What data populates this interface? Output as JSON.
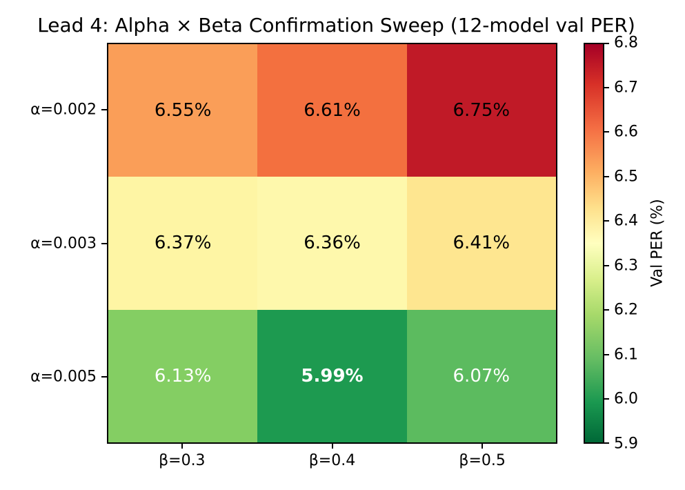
{
  "title": "Lead 4: Alpha × Beta Confirmation Sweep (12-model val PER)",
  "chart_data": {
    "type": "heatmap",
    "title": "Lead 4: Alpha × Beta Confirmation Sweep (12-model val PER)",
    "row_labels": [
      "α=0.002",
      "α=0.003",
      "α=0.005"
    ],
    "col_labels": [
      "β=0.3",
      "β=0.4",
      "β=0.5"
    ],
    "values": [
      [
        6.55,
        6.61,
        6.75
      ],
      [
        6.37,
        6.36,
        6.41
      ],
      [
        6.13,
        5.99,
        6.07
      ]
    ],
    "cell_labels": [
      [
        "6.55%",
        "6.61%",
        "6.75%"
      ],
      [
        "6.37%",
        "6.36%",
        "6.41%"
      ],
      [
        "6.13%",
        "5.99%",
        "6.07%"
      ]
    ],
    "cell_colors": [
      [
        "#fa9e58",
        "#f3703f",
        "#c01a27"
      ],
      [
        "#fef5a4",
        "#fef8ac",
        "#fee690"
      ],
      [
        "#84ce63",
        "#1d9a50",
        "#5cbb5f"
      ]
    ],
    "cell_text_colors": [
      [
        "#000000",
        "#000000",
        "#000000"
      ],
      [
        "#000000",
        "#000000",
        "#000000"
      ],
      [
        "#ffffff",
        "#ffffff",
        "#ffffff"
      ]
    ],
    "bold_cell": {
      "row": 2,
      "col": 1
    },
    "grid": false,
    "colormap": "RdYlGn_r",
    "colorbar": {
      "label": "Val PER (%)",
      "vmin": 5.9,
      "vmax": 6.8,
      "tick_labels_top_to_bottom": [
        "6.8",
        "6.7",
        "6.6",
        "6.5",
        "6.4",
        "6.3",
        "6.2",
        "6.1",
        "6.0",
        "5.9"
      ],
      "gradient_top_to_bottom": [
        {
          "color": "#a50026",
          "pos": 0
        },
        {
          "color": "#d73027",
          "pos": 10
        },
        {
          "color": "#f46d43",
          "pos": 21
        },
        {
          "color": "#fdae61",
          "pos": 32
        },
        {
          "color": "#fee08b",
          "pos": 41
        },
        {
          "color": "#ffffbf",
          "pos": 50
        },
        {
          "color": "#d9ef8b",
          "pos": 59
        },
        {
          "color": "#a6d96a",
          "pos": 68
        },
        {
          "color": "#66bd63",
          "pos": 79
        },
        {
          "color": "#1a9850",
          "pos": 90
        },
        {
          "color": "#006837",
          "pos": 100
        }
      ]
    }
  }
}
